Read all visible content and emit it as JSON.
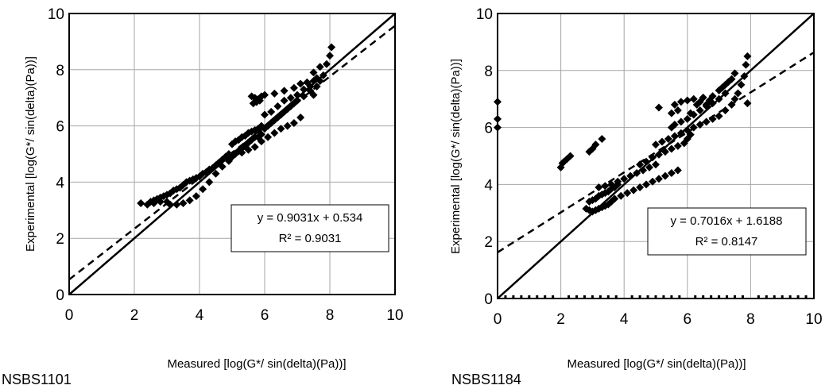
{
  "chart_data": [
    {
      "type": "scatter",
      "panel_label": "NSBS1101",
      "title": "",
      "xlabel": "Measured [log(G*/ sin(delta)(Pa))]",
      "ylabel": "Experimental  [log(G*/ sin(delta)(Pa))]",
      "xlim": [
        0,
        10
      ],
      "ylim": [
        0,
        10
      ],
      "xticks": [
        "0",
        "2",
        "4",
        "6",
        "8",
        "10"
      ],
      "yticks": [
        "0",
        "2",
        "4",
        "6",
        "8",
        "10"
      ],
      "grid": true,
      "marker": "diamond",
      "equation": "y = 0.9031x + 0.534",
      "r_squared": "R² = 0.9031",
      "line_of_equality": {
        "slope": 1,
        "intercept": 0,
        "style": "solid"
      },
      "trendline": {
        "slope": 0.9031,
        "intercept": 0.534,
        "style": "dashed"
      },
      "points": [
        [
          2.2,
          3.25
        ],
        [
          2.4,
          3.2
        ],
        [
          2.5,
          3.3
        ],
        [
          2.6,
          3.35
        ],
        [
          2.7,
          3.4
        ],
        [
          2.8,
          3.45
        ],
        [
          2.9,
          3.5
        ],
        [
          2.6,
          3.25
        ],
        [
          2.8,
          3.3
        ],
        [
          3.0,
          3.3
        ],
        [
          3.0,
          3.55
        ],
        [
          3.1,
          3.6
        ],
        [
          3.2,
          3.7
        ],
        [
          3.3,
          3.75
        ],
        [
          3.4,
          3.8
        ],
        [
          3.5,
          3.9
        ],
        [
          3.6,
          4.0
        ],
        [
          3.7,
          4.05
        ],
        [
          3.8,
          4.1
        ],
        [
          3.9,
          4.15
        ],
        [
          3.1,
          3.2
        ],
        [
          3.3,
          3.2
        ],
        [
          3.5,
          3.25
        ],
        [
          3.7,
          3.35
        ],
        [
          3.9,
          3.5
        ],
        [
          4.1,
          3.75
        ],
        [
          4.3,
          4.0
        ],
        [
          4.5,
          4.3
        ],
        [
          4.7,
          4.55
        ],
        [
          4.9,
          4.75
        ],
        [
          4.0,
          4.2
        ],
        [
          4.1,
          4.3
        ],
        [
          4.2,
          4.35
        ],
        [
          4.3,
          4.45
        ],
        [
          4.4,
          4.5
        ],
        [
          4.5,
          4.6
        ],
        [
          4.6,
          4.7
        ],
        [
          4.7,
          4.8
        ],
        [
          4.8,
          4.9
        ],
        [
          4.9,
          5.0
        ],
        [
          5.0,
          4.9
        ],
        [
          5.1,
          5.0
        ],
        [
          5.2,
          5.1
        ],
        [
          5.3,
          5.2
        ],
        [
          5.4,
          5.3
        ],
        [
          5.5,
          5.4
        ],
        [
          5.6,
          5.5
        ],
        [
          5.7,
          5.6
        ],
        [
          5.8,
          5.6
        ],
        [
          5.9,
          5.7
        ],
        [
          5.0,
          5.35
        ],
        [
          5.1,
          5.45
        ],
        [
          5.2,
          5.5
        ],
        [
          5.3,
          5.6
        ],
        [
          5.4,
          5.65
        ],
        [
          5.5,
          5.75
        ],
        [
          5.6,
          5.8
        ],
        [
          5.7,
          5.85
        ],
        [
          5.8,
          5.9
        ],
        [
          5.9,
          6.0
        ],
        [
          5.3,
          5.05
        ],
        [
          5.5,
          5.15
        ],
        [
          5.7,
          5.25
        ],
        [
          5.9,
          5.45
        ],
        [
          6.1,
          5.6
        ],
        [
          6.3,
          5.75
        ],
        [
          6.5,
          5.9
        ],
        [
          6.7,
          6.0
        ],
        [
          6.9,
          6.1
        ],
        [
          7.1,
          6.3
        ],
        [
          6.0,
          5.9
        ],
        [
          6.1,
          6.0
        ],
        [
          6.2,
          6.1
        ],
        [
          6.3,
          6.2
        ],
        [
          6.4,
          6.3
        ],
        [
          6.5,
          6.4
        ],
        [
          6.6,
          6.5
        ],
        [
          6.7,
          6.6
        ],
        [
          6.8,
          6.7
        ],
        [
          6.9,
          6.8
        ],
        [
          6.0,
          6.4
        ],
        [
          6.2,
          6.5
        ],
        [
          6.4,
          6.7
        ],
        [
          6.6,
          6.9
        ],
        [
          6.8,
          7.0
        ],
        [
          7.0,
          7.1
        ],
        [
          7.2,
          7.3
        ],
        [
          7.4,
          7.4
        ],
        [
          7.5,
          7.6
        ],
        [
          7.6,
          7.7
        ],
        [
          7.0,
          6.9
        ],
        [
          7.2,
          7.05
        ],
        [
          7.4,
          7.25
        ],
        [
          7.5,
          7.1
        ],
        [
          7.6,
          7.4
        ],
        [
          7.7,
          7.6
        ],
        [
          7.8,
          7.8
        ],
        [
          7.9,
          8.2
        ],
        [
          8.0,
          8.5
        ],
        [
          8.05,
          8.8
        ],
        [
          5.6,
          7.05
        ],
        [
          5.7,
          7.0
        ],
        [
          5.8,
          6.95
        ],
        [
          5.9,
          7.05
        ],
        [
          5.65,
          6.8
        ],
        [
          5.75,
          6.85
        ],
        [
          5.85,
          6.9
        ],
        [
          6.0,
          7.1
        ],
        [
          6.3,
          7.15
        ],
        [
          6.6,
          7.25
        ],
        [
          6.9,
          7.35
        ],
        [
          7.1,
          7.5
        ],
        [
          7.3,
          7.55
        ],
        [
          7.5,
          7.9
        ],
        [
          7.7,
          8.1
        ]
      ]
    },
    {
      "type": "scatter",
      "panel_label": "NSBS1184",
      "title": "",
      "xlabel": "Measured [log(G*/ sin(delta)(Pa))]",
      "ylabel": "Experimental  [log(G*/ sin(delta)(Pa))]",
      "xlim": [
        0,
        10
      ],
      "ylim": [
        0,
        10
      ],
      "xticks": [
        "0",
        "2",
        "4",
        "6",
        "8",
        "10"
      ],
      "yticks": [
        "0",
        "2",
        "4",
        "6",
        "8",
        "10"
      ],
      "grid": true,
      "marker": "diamond",
      "equation": "y = 0.7016x + 1.6188",
      "r_squared": "R² = 0.8147",
      "line_of_equality": {
        "slope": 1,
        "intercept": 0,
        "style": "solid"
      },
      "trendline": {
        "slope": 0.7016,
        "intercept": 1.6188,
        "style": "dashed"
      },
      "points": [
        [
          0.0,
          6.9
        ],
        [
          0.0,
          6.3
        ],
        [
          0.0,
          6.0
        ],
        [
          2.0,
          4.6
        ],
        [
          2.05,
          4.75
        ],
        [
          2.1,
          4.8
        ],
        [
          2.2,
          4.9
        ],
        [
          2.3,
          5.0
        ],
        [
          2.9,
          5.15
        ],
        [
          3.0,
          5.25
        ],
        [
          3.1,
          5.4
        ],
        [
          3.3,
          5.6
        ],
        [
          2.8,
          3.15
        ],
        [
          2.9,
          3.1
        ],
        [
          3.0,
          3.05
        ],
        [
          3.1,
          3.1
        ],
        [
          3.2,
          3.15
        ],
        [
          3.3,
          3.2
        ],
        [
          3.4,
          3.25
        ],
        [
          3.5,
          3.3
        ],
        [
          3.6,
          3.4
        ],
        [
          3.7,
          3.5
        ],
        [
          2.9,
          3.4
        ],
        [
          3.0,
          3.45
        ],
        [
          3.1,
          3.5
        ],
        [
          3.2,
          3.6
        ],
        [
          3.3,
          3.65
        ],
        [
          3.4,
          3.7
        ],
        [
          3.5,
          3.75
        ],
        [
          3.6,
          3.85
        ],
        [
          3.7,
          3.9
        ],
        [
          3.8,
          4.0
        ],
        [
          3.2,
          3.9
        ],
        [
          3.4,
          3.95
        ],
        [
          3.6,
          4.0
        ],
        [
          3.8,
          4.1
        ],
        [
          4.0,
          4.2
        ],
        [
          4.2,
          4.3
        ],
        [
          4.4,
          4.4
        ],
        [
          4.6,
          4.5
        ],
        [
          4.8,
          4.6
        ],
        [
          5.0,
          4.7
        ],
        [
          3.9,
          3.6
        ],
        [
          4.1,
          3.7
        ],
        [
          4.3,
          3.8
        ],
        [
          4.5,
          3.9
        ],
        [
          4.7,
          4.0
        ],
        [
          4.9,
          4.1
        ],
        [
          5.1,
          4.2
        ],
        [
          5.3,
          4.3
        ],
        [
          5.5,
          4.4
        ],
        [
          5.7,
          4.5
        ],
        [
          4.5,
          4.7
        ],
        [
          4.7,
          4.8
        ],
        [
          4.9,
          4.95
        ],
        [
          5.1,
          5.05
        ],
        [
          5.3,
          5.15
        ],
        [
          5.5,
          5.25
        ],
        [
          5.7,
          5.35
        ],
        [
          5.9,
          5.45
        ],
        [
          6.0,
          5.6
        ],
        [
          6.1,
          5.75
        ],
        [
          5.0,
          5.4
        ],
        [
          5.2,
          5.5
        ],
        [
          5.4,
          5.6
        ],
        [
          5.6,
          5.7
        ],
        [
          5.8,
          5.8
        ],
        [
          6.0,
          5.9
        ],
        [
          6.2,
          6.0
        ],
        [
          6.4,
          6.1
        ],
        [
          6.6,
          6.2
        ],
        [
          6.8,
          6.3
        ],
        [
          5.5,
          6.0
        ],
        [
          5.6,
          6.1
        ],
        [
          5.8,
          6.2
        ],
        [
          6.0,
          6.3
        ],
        [
          6.2,
          6.45
        ],
        [
          6.4,
          6.6
        ],
        [
          6.6,
          6.75
        ],
        [
          6.8,
          6.85
        ],
        [
          7.0,
          7.0
        ],
        [
          7.2,
          7.2
        ],
        [
          5.6,
          6.8
        ],
        [
          5.8,
          6.9
        ],
        [
          6.0,
          6.95
        ],
        [
          6.2,
          7.0
        ],
        [
          6.4,
          6.9
        ],
        [
          6.6,
          6.8
        ],
        [
          6.8,
          7.1
        ],
        [
          7.0,
          7.3
        ],
        [
          7.2,
          7.5
        ],
        [
          7.4,
          7.7
        ],
        [
          7.0,
          6.4
        ],
        [
          7.2,
          6.6
        ],
        [
          7.4,
          6.8
        ],
        [
          7.5,
          7.0
        ],
        [
          7.6,
          7.2
        ],
        [
          7.7,
          7.5
        ],
        [
          7.8,
          7.8
        ],
        [
          7.85,
          8.2
        ],
        [
          7.9,
          8.5
        ],
        [
          7.9,
          6.85
        ],
        [
          5.1,
          6.7
        ],
        [
          5.5,
          6.5
        ],
        [
          5.7,
          6.6
        ],
        [
          6.1,
          6.5
        ],
        [
          6.3,
          6.8
        ],
        [
          6.5,
          7.05
        ],
        [
          6.7,
          6.95
        ],
        [
          7.1,
          7.4
        ],
        [
          7.3,
          7.6
        ],
        [
          7.5,
          7.9
        ]
      ]
    }
  ]
}
